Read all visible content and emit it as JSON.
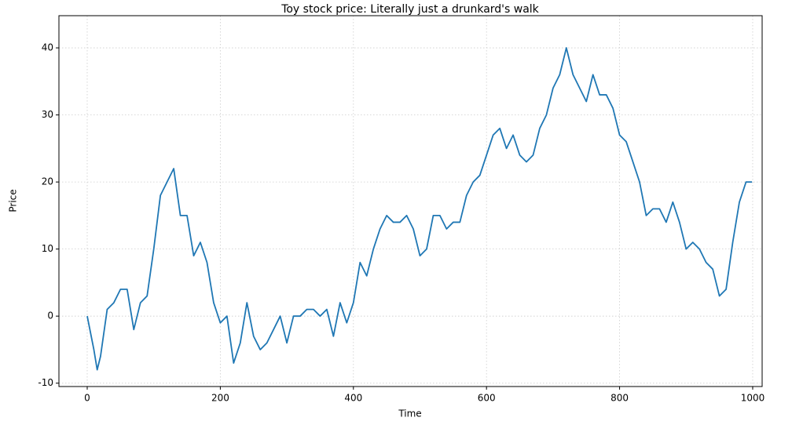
{
  "chart_data": {
    "type": "line",
    "title": "Toy stock price: Literally just a drunkard's walk",
    "xlabel": "Time",
    "ylabel": "Price",
    "x": [
      0,
      10,
      15,
      20,
      30,
      40,
      50,
      60,
      70,
      80,
      90,
      100,
      110,
      120,
      130,
      140,
      150,
      160,
      170,
      180,
      190,
      200,
      210,
      220,
      230,
      240,
      250,
      260,
      270,
      280,
      290,
      300,
      310,
      320,
      330,
      340,
      350,
      360,
      370,
      380,
      390,
      400,
      410,
      420,
      430,
      440,
      450,
      460,
      470,
      480,
      490,
      500,
      510,
      520,
      530,
      540,
      550,
      560,
      570,
      580,
      590,
      600,
      610,
      620,
      630,
      640,
      650,
      660,
      670,
      680,
      690,
      700,
      710,
      720,
      730,
      740,
      750,
      760,
      770,
      780,
      790,
      800,
      810,
      820,
      830,
      840,
      850,
      860,
      870,
      880,
      890,
      900,
      910,
      920,
      930,
      940,
      950,
      960,
      970,
      980,
      990,
      999
    ],
    "values": [
      0,
      -5,
      -8,
      -6,
      1,
      2,
      4,
      4,
      -2,
      2,
      3,
      10,
      18,
      20,
      22,
      15,
      15,
      9,
      11,
      8,
      2,
      -1,
      0,
      -7,
      -4,
      2,
      -3,
      -5,
      -4,
      -2,
      0,
      -4,
      0,
      0,
      1,
      1,
      0,
      1,
      -3,
      2,
      -1,
      2,
      8,
      6,
      10,
      13,
      15,
      14,
      14,
      15,
      13,
      9,
      10,
      15,
      15,
      13,
      14,
      14,
      18,
      20,
      21,
      24,
      27,
      28,
      25,
      27,
      24,
      23,
      24,
      28,
      30,
      34,
      36,
      40,
      36,
      34,
      32,
      36,
      33,
      33,
      31,
      27,
      26,
      23,
      20,
      15,
      16,
      16,
      14,
      17,
      14,
      10,
      11,
      10,
      8,
      7,
      3,
      4,
      11,
      17,
      20,
      20
    ],
    "color": "#1f77b4",
    "xlim": [
      -42.5,
      1014.2
    ],
    "ylim": [
      -10.5,
      44.8
    ],
    "xticks": [
      0,
      200,
      400,
      600,
      800,
      1000
    ],
    "yticks": [
      -10,
      0,
      10,
      20,
      30,
      40
    ],
    "grid": true
  }
}
